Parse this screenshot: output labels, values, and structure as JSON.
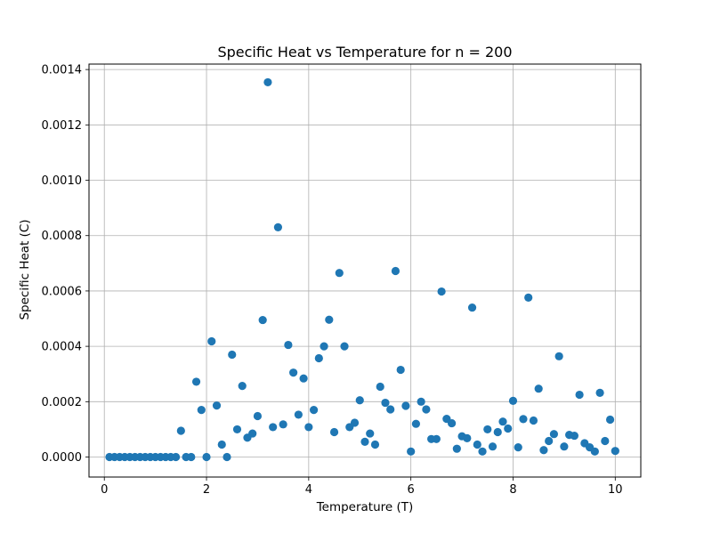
{
  "chart_data": {
    "type": "scatter",
    "title": "Specific Heat vs Temperature for n = 200",
    "xlabel": "Temperature (T)",
    "ylabel": "Specific Heat (C)",
    "xlim": [
      -0.3,
      10.5
    ],
    "ylim": [
      -7.23e-05,
      0.0014197
    ],
    "grid": true,
    "x_ticks": [
      {
        "value": 0,
        "label": "0"
      },
      {
        "value": 2,
        "label": "2"
      },
      {
        "value": 4,
        "label": "4"
      },
      {
        "value": 6,
        "label": "6"
      },
      {
        "value": 8,
        "label": "8"
      },
      {
        "value": 10,
        "label": "10"
      }
    ],
    "y_ticks": [
      {
        "value": 0,
        "label": "0.0000"
      },
      {
        "value": 0.0002,
        "label": "0.0002"
      },
      {
        "value": 0.0004,
        "label": "0.0004"
      },
      {
        "value": 0.0006,
        "label": "0.0006"
      },
      {
        "value": 0.0008,
        "label": "0.0008"
      },
      {
        "value": 0.001,
        "label": "0.0010"
      },
      {
        "value": 0.0012,
        "label": "0.0012"
      },
      {
        "value": 0.0014,
        "label": "0.0014"
      }
    ],
    "marker_color": "#1f77b4",
    "series": [
      {
        "points": [
          [
            0.1,
            0.0
          ],
          [
            0.2,
            0.0
          ],
          [
            0.3,
            0.0
          ],
          [
            0.4,
            0.0
          ],
          [
            0.5,
            0.0
          ],
          [
            0.6,
            0.0
          ],
          [
            0.7,
            0.0
          ],
          [
            0.8,
            0.0
          ],
          [
            0.9,
            0.0
          ],
          [
            1.0,
            0.0
          ],
          [
            1.1,
            0.0
          ],
          [
            1.2,
            0.0
          ],
          [
            1.3,
            0.0
          ],
          [
            1.4,
            0.0
          ],
          [
            1.5,
            9.5e-05
          ],
          [
            1.6,
            0.0
          ],
          [
            1.7,
            0.0
          ],
          [
            1.8,
            0.000272
          ],
          [
            1.9,
            0.00017
          ],
          [
            2.0,
            0.0
          ],
          [
            2.1,
            0.000418
          ],
          [
            2.2,
            0.000186
          ],
          [
            2.3,
            4.5e-05
          ],
          [
            2.4,
            0.0
          ],
          [
            2.5,
            0.00037
          ],
          [
            2.6,
            0.0001
          ],
          [
            2.7,
            0.000257
          ],
          [
            2.8,
            7e-05
          ],
          [
            2.9,
            8.5e-05
          ],
          [
            3.0,
            0.000148
          ],
          [
            3.1,
            0.000495
          ],
          [
            3.2,
            0.001354
          ],
          [
            3.3,
            0.000108
          ],
          [
            3.4,
            0.00083
          ],
          [
            3.5,
            0.000118
          ],
          [
            3.6,
            0.000405
          ],
          [
            3.7,
            0.000305
          ],
          [
            3.8,
            0.000153
          ],
          [
            3.9,
            0.000284
          ],
          [
            4.0,
            0.000108
          ],
          [
            4.1,
            0.00017
          ],
          [
            4.2,
            0.000357
          ],
          [
            4.3,
            0.0004
          ],
          [
            4.4,
            0.000496
          ],
          [
            4.5,
            9e-05
          ],
          [
            4.6,
            0.000665
          ],
          [
            4.7,
            0.0004
          ],
          [
            4.8,
            0.000108
          ],
          [
            4.9,
            0.000124
          ],
          [
            5.0,
            0.000205
          ],
          [
            5.1,
            5.5e-05
          ],
          [
            5.2,
            8.5e-05
          ],
          [
            5.3,
            4.5e-05
          ],
          [
            5.4,
            0.000254
          ],
          [
            5.5,
            0.000196
          ],
          [
            5.6,
            0.000172
          ],
          [
            5.7,
            0.000672
          ],
          [
            5.8,
            0.000315
          ],
          [
            5.9,
            0.000185
          ],
          [
            6.0,
            2e-05
          ],
          [
            6.1,
            0.00012
          ],
          [
            6.2,
            0.0002
          ],
          [
            6.3,
            0.000172
          ],
          [
            6.4,
            6.5e-05
          ],
          [
            6.5,
            6.5e-05
          ],
          [
            6.6,
            0.000598
          ],
          [
            6.7,
            0.000138
          ],
          [
            6.8,
            0.000122
          ],
          [
            6.9,
            3e-05
          ],
          [
            7.0,
            7.5e-05
          ],
          [
            7.1,
            6.8e-05
          ],
          [
            7.2,
            0.00054
          ],
          [
            7.3,
            4.5e-05
          ],
          [
            7.4,
            2e-05
          ],
          [
            7.5,
            0.0001
          ],
          [
            7.6,
            3.8e-05
          ],
          [
            7.7,
            9e-05
          ],
          [
            7.8,
            0.000128
          ],
          [
            7.9,
            0.000103
          ],
          [
            8.0,
            0.000203
          ],
          [
            8.1,
            3.5e-05
          ],
          [
            8.2,
            0.000137
          ],
          [
            8.3,
            0.000576
          ],
          [
            8.4,
            0.000132
          ],
          [
            8.5,
            0.000247
          ],
          [
            8.6,
            2.5e-05
          ],
          [
            8.7,
            5.8e-05
          ],
          [
            8.8,
            8.3e-05
          ],
          [
            8.9,
            0.000364
          ],
          [
            9.0,
            3.8e-05
          ],
          [
            9.1,
            8e-05
          ],
          [
            9.2,
            7.7e-05
          ],
          [
            9.3,
            0.000225
          ],
          [
            9.4,
            5e-05
          ],
          [
            9.5,
            3.5e-05
          ],
          [
            9.6,
            2e-05
          ],
          [
            9.7,
            0.000232
          ],
          [
            9.8,
            5.8e-05
          ],
          [
            9.9,
            0.000135
          ],
          [
            10.0,
            2.2e-05
          ]
        ]
      }
    ]
  }
}
